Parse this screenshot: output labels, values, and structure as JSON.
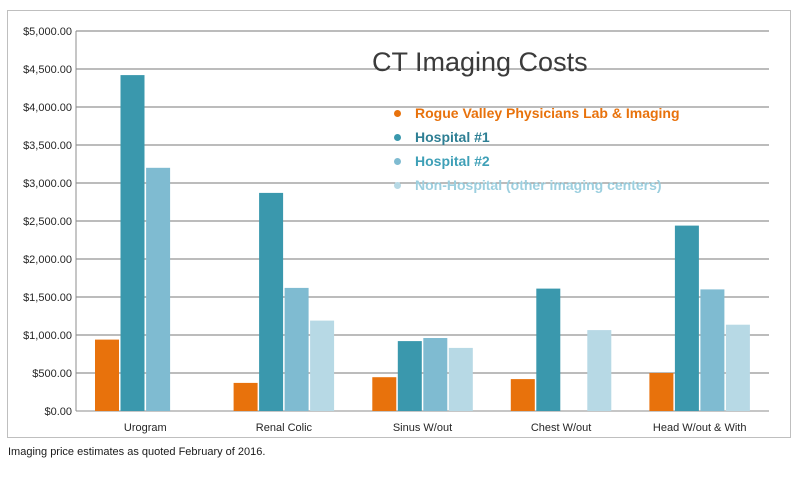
{
  "chart_data": {
    "type": "bar",
    "title": "CT Imaging Costs",
    "categories": [
      "Urogram",
      "Renal Colic",
      "Sinus W/out",
      "Chest W/out",
      "Head W/out & With"
    ],
    "series": [
      {
        "name": "Rogue Valley Physicians Lab & Imaging",
        "color": "#e8720c",
        "values": [
          940,
          370,
          445,
          420,
          500
        ]
      },
      {
        "name": "Hospital #1",
        "color": "#3a98ad",
        "values": [
          4420,
          2870,
          920,
          1610,
          2440
        ]
      },
      {
        "name": "Hospital #2",
        "color": "#7fbbd1",
        "values": [
          3200,
          1620,
          960,
          null,
          1600
        ]
      },
      {
        "name": "Non-Hospital (other imaging centers)",
        "color": "#b7d9e5",
        "values": [
          null,
          1190,
          830,
          1065,
          1135
        ]
      }
    ],
    "yticks": [
      "$0.00",
      "$500.00",
      "$1,000.00",
      "$1,500.00",
      "$2,000.00",
      "$2,500.00",
      "$3,000.00",
      "$3,500.00",
      "$4,000.00",
      "$4,500.00",
      "$5,000.00"
    ],
    "ylim": [
      0,
      5000
    ],
    "ystep": 500,
    "grid": true,
    "legend_position": "top-right"
  },
  "legend_colors": {
    "Rogue Valley Physicians Lab & Imaging": "#e8720c",
    "Hospital #1": "#2e7f94",
    "Hospital #2": "#3fa0b7",
    "Non-Hospital (other imaging centers)": "#9ccfdf"
  },
  "footnote": "Imaging price estimates as quoted February of 2016."
}
